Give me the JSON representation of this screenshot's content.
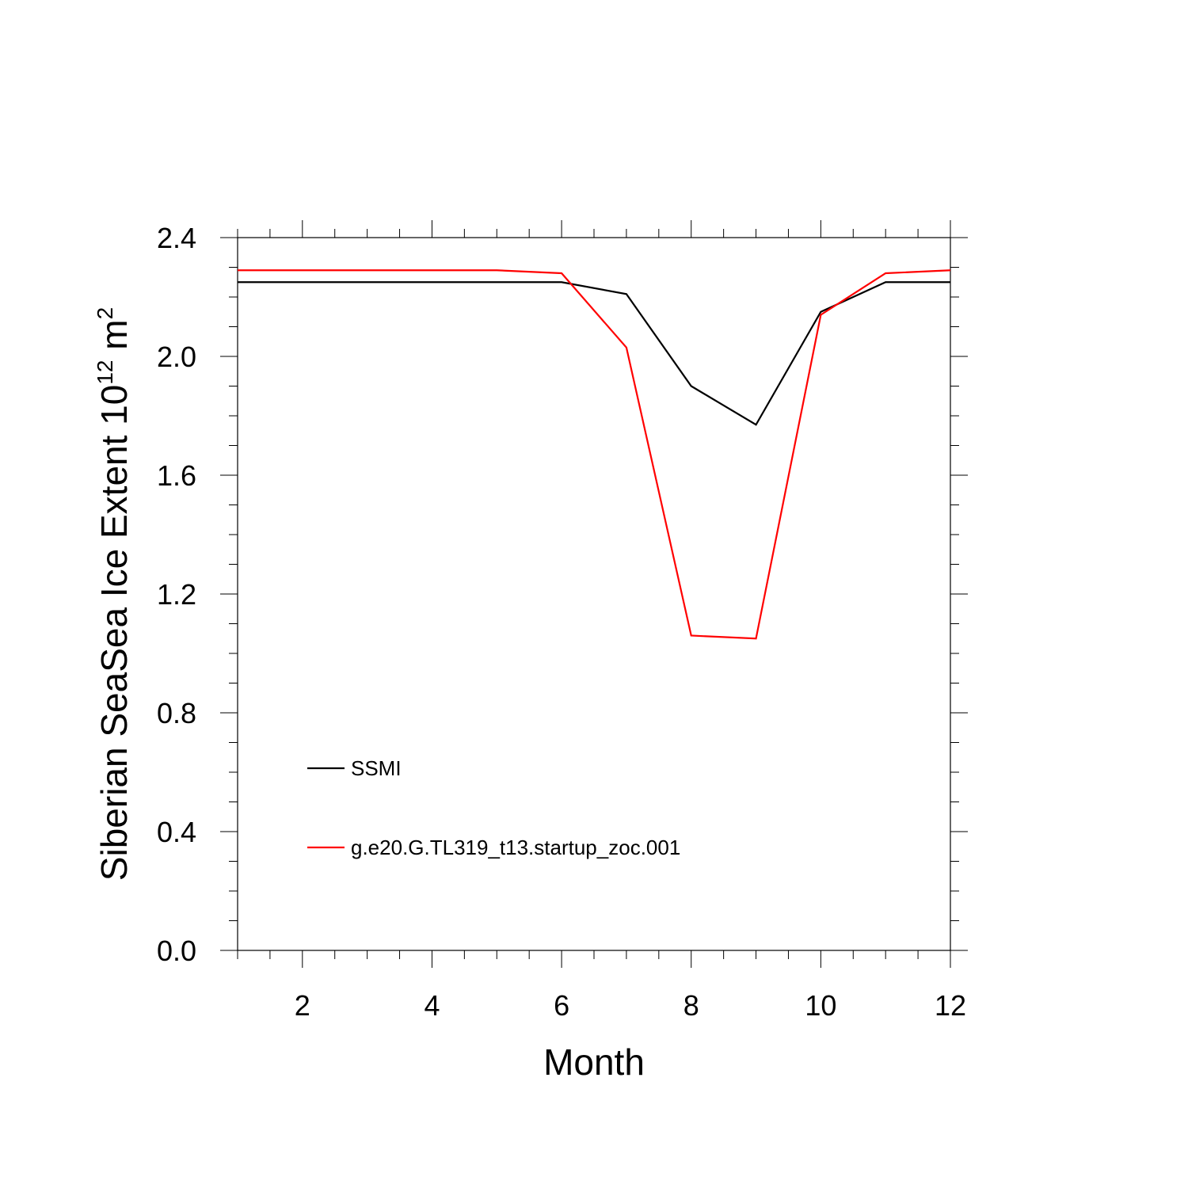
{
  "chart_data": {
    "type": "line",
    "xlabel": "Month",
    "ylabel": {
      "base": "Siberian SeaSea Ice Extent 10",
      "exponent": "12",
      "unit": " m",
      "unit_exponent": "2"
    },
    "xlim": [
      1,
      12
    ],
    "ylim": [
      0,
      2.4
    ],
    "x_ticks": [
      2,
      4,
      6,
      8,
      10,
      12
    ],
    "x_tick_labels": [
      "2",
      "4",
      "6",
      "8",
      "10",
      "12"
    ],
    "y_ticks": [
      0,
      0.4,
      0.8,
      1.2,
      1.6,
      2.0,
      2.4
    ],
    "y_tick_labels": [
      "0.0",
      "0.4",
      "0.8",
      "1.2",
      "1.6",
      "2.0",
      "2.4"
    ],
    "x": [
      1,
      2,
      3,
      4,
      5,
      6,
      7,
      8,
      9,
      10,
      11,
      12
    ],
    "series": [
      {
        "name": "SSMI",
        "color": "#000000",
        "values": [
          2.25,
          2.25,
          2.25,
          2.25,
          2.25,
          2.25,
          2.21,
          1.9,
          1.77,
          2.15,
          2.25,
          2.25
        ]
      },
      {
        "name": "g.e20.G.TL319_t13.startup_zoc.001",
        "color": "#ff0000",
        "values": [
          2.29,
          2.29,
          2.29,
          2.29,
          2.29,
          2.28,
          2.03,
          1.06,
          1.05,
          2.14,
          2.28,
          2.29
        ]
      }
    ],
    "legend_position": "lower-left inside plot",
    "grid": false
  }
}
